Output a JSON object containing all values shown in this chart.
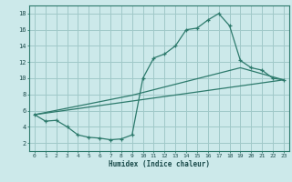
{
  "title": "",
  "xlabel": "Humidex (Indice chaleur)",
  "bg_color": "#cce9ea",
  "line_color": "#2d7a6c",
  "grid_color": "#a0c8c8",
  "xlim": [
    -0.5,
    23.5
  ],
  "ylim": [
    1.0,
    19.0
  ],
  "xticks": [
    0,
    1,
    2,
    3,
    4,
    5,
    6,
    7,
    8,
    9,
    10,
    11,
    12,
    13,
    14,
    15,
    16,
    17,
    18,
    19,
    20,
    21,
    22,
    23
  ],
  "yticks": [
    2,
    4,
    6,
    8,
    10,
    12,
    14,
    16,
    18
  ],
  "curve1_x": [
    0,
    1,
    2,
    3,
    4,
    5,
    6,
    7,
    8,
    9,
    10,
    11,
    12,
    13,
    14,
    15,
    16,
    17,
    18,
    19,
    20,
    21,
    22,
    23
  ],
  "curve1_y": [
    5.5,
    4.7,
    4.8,
    4.0,
    3.0,
    2.7,
    2.6,
    2.4,
    2.5,
    3.0,
    10.0,
    12.5,
    13.0,
    14.0,
    16.0,
    16.2,
    17.2,
    18.0,
    16.5,
    12.2,
    11.3,
    11.0,
    10.0,
    9.8
  ],
  "curve2_x": [
    0,
    23
  ],
  "curve2_y": [
    5.5,
    9.8
  ],
  "curve3_x": [
    0,
    9,
    19,
    23
  ],
  "curve3_y": [
    5.5,
    7.9,
    11.3,
    9.8
  ],
  "spine_color": "#2d7a6c"
}
